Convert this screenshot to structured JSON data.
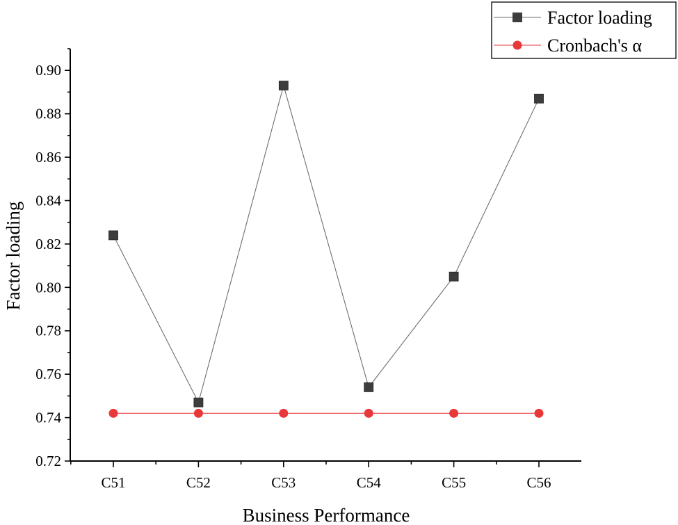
{
  "chart_data": {
    "type": "line",
    "title": "",
    "xlabel": "Business Performance",
    "ylabel": "Factor loading",
    "categories": [
      "C51",
      "C52",
      "C53",
      "C54",
      "C55",
      "C56"
    ],
    "ylim": [
      0.72,
      0.91
    ],
    "yticks": [
      "0.72",
      "0.74",
      "0.76",
      "0.78",
      "0.80",
      "0.82",
      "0.84",
      "0.86",
      "0.88",
      "0.90"
    ],
    "ytick_values": [
      0.72,
      0.74,
      0.76,
      0.78,
      0.8,
      0.82,
      0.84,
      0.86,
      0.88,
      0.9
    ],
    "grid": false,
    "legend_position": "top-right",
    "series": [
      {
        "name": "Factor loading",
        "values": [
          0.824,
          0.747,
          0.893,
          0.754,
          0.805,
          0.887
        ],
        "color": "#3d3d3d",
        "line_color": "#6e6e6e",
        "marker": "square"
      },
      {
        "name": "Cronbach's α",
        "values": [
          0.742,
          0.742,
          0.742,
          0.742,
          0.742,
          0.742
        ],
        "color": "#e8383a",
        "line_color": "#e8383a",
        "marker": "circle"
      }
    ]
  }
}
